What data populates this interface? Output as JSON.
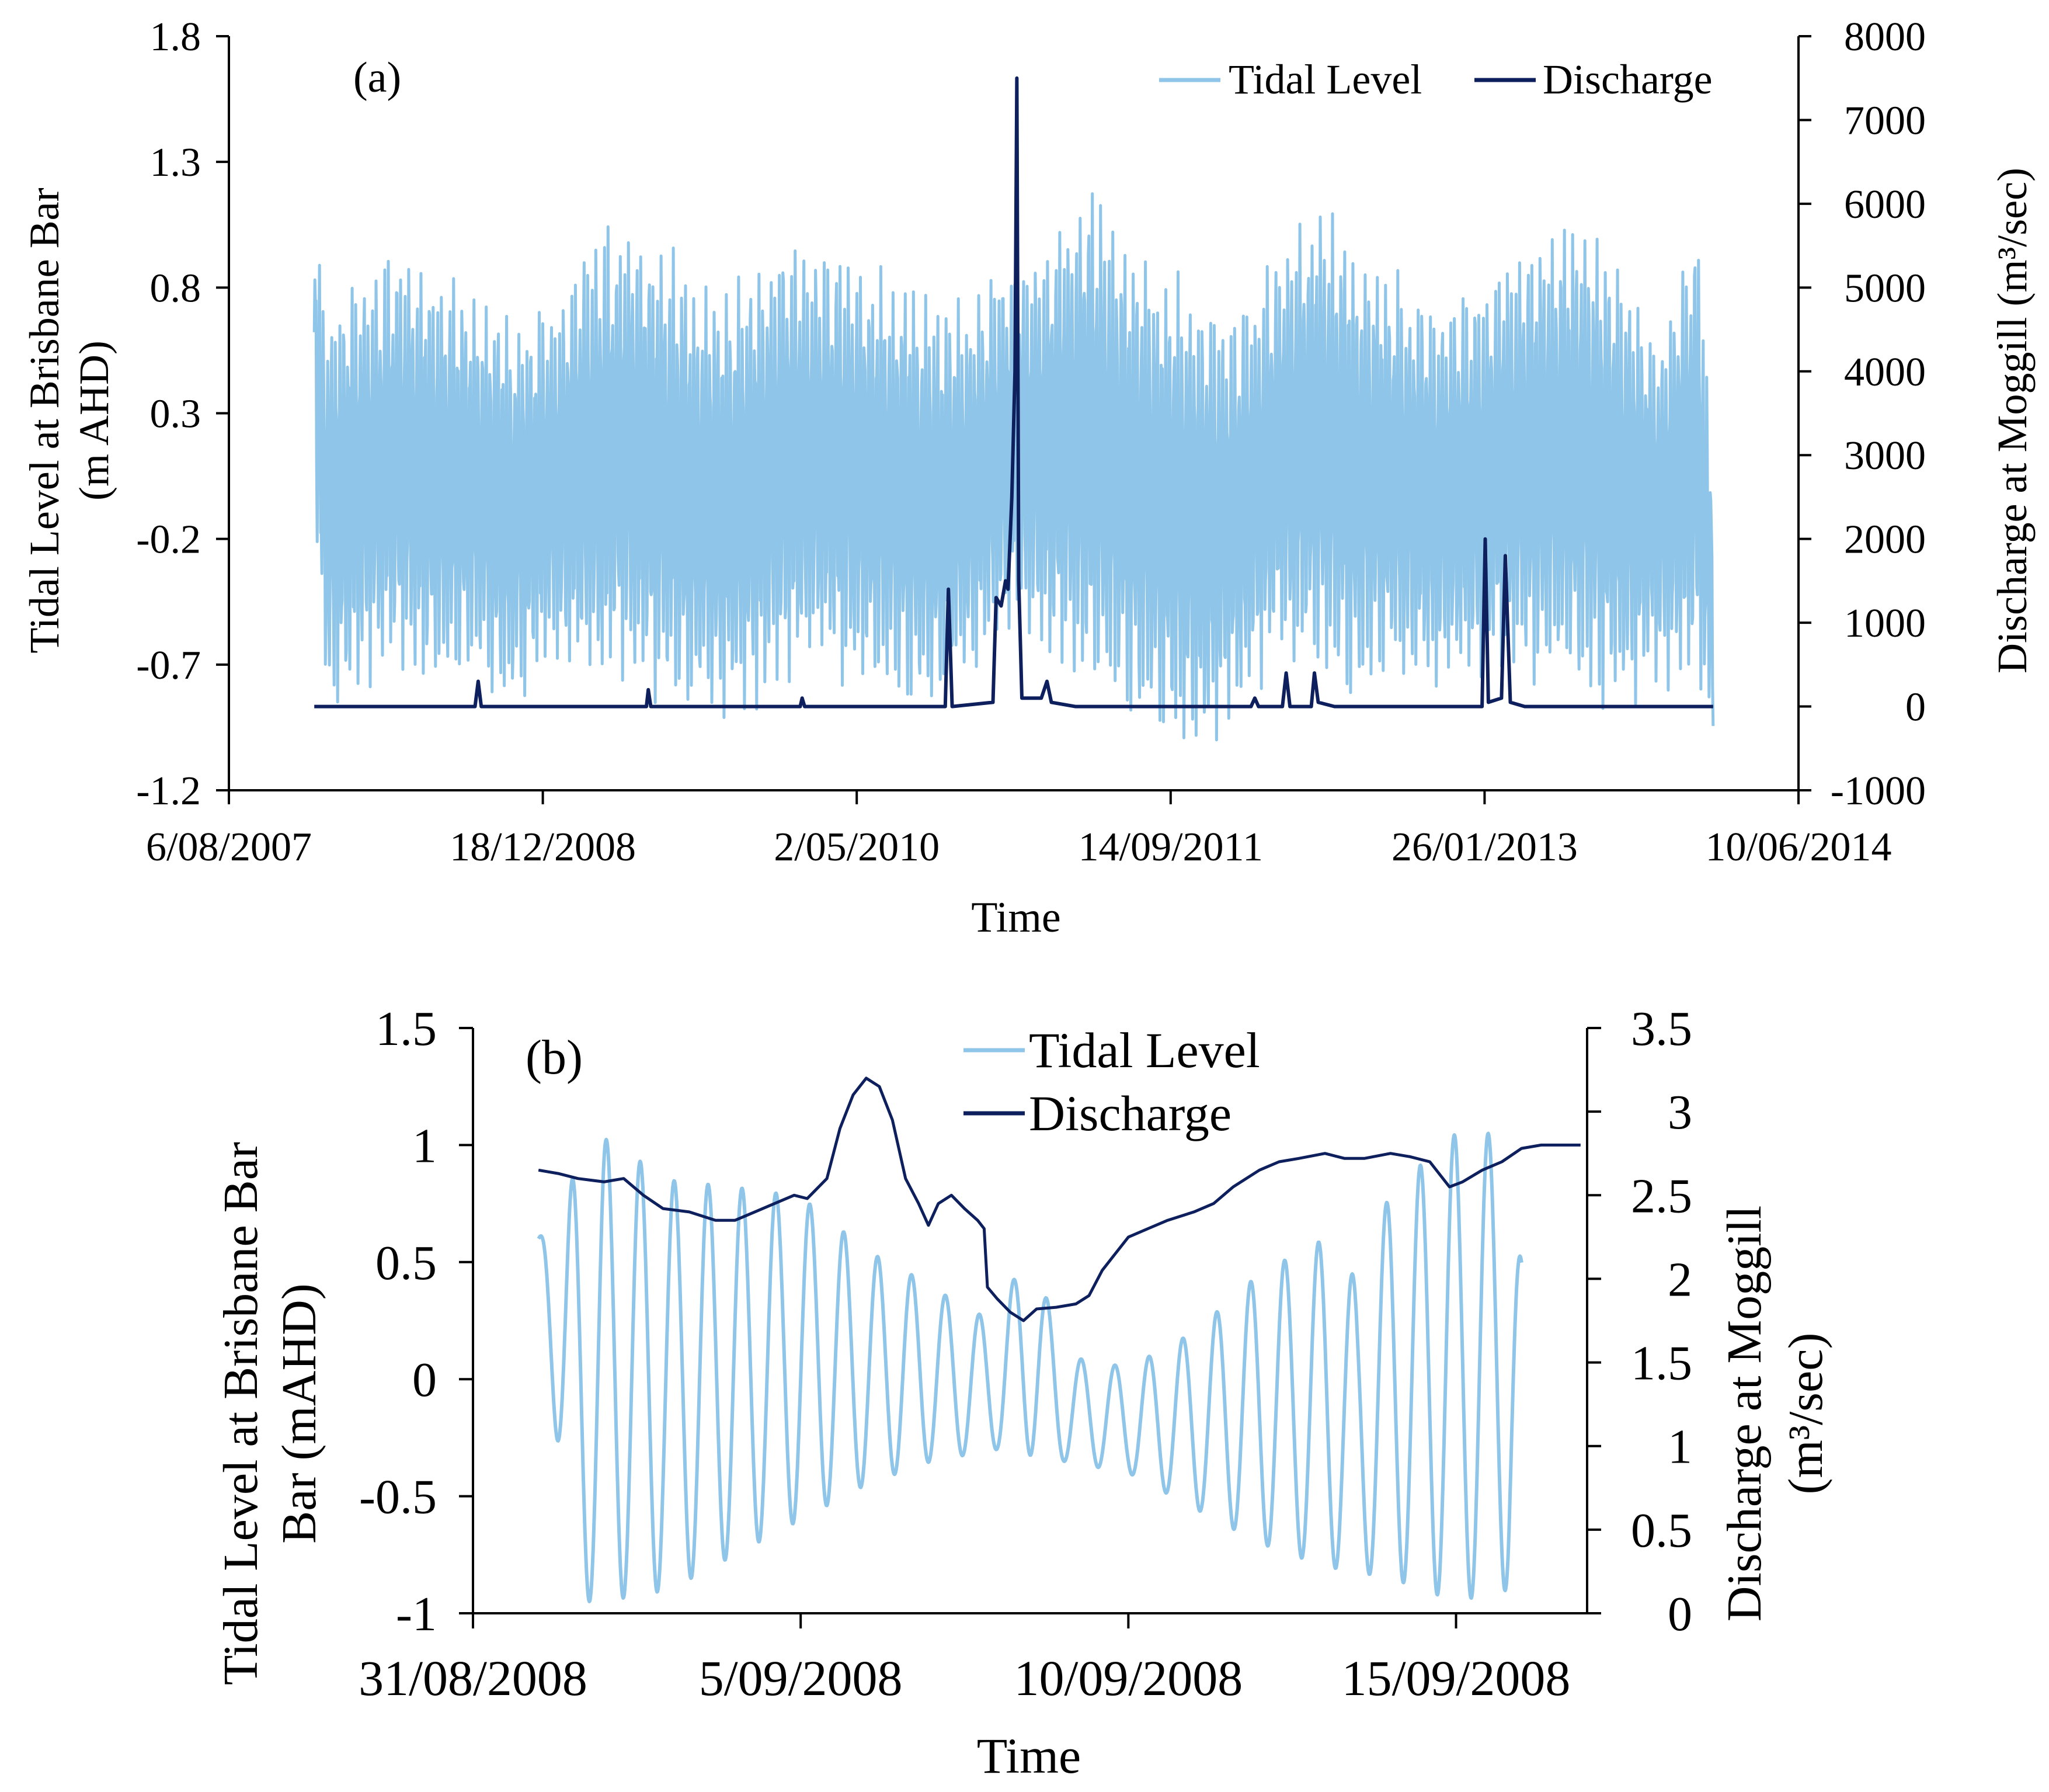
{
  "colors": {
    "tidal": "#8ec5e8",
    "discharge": "#0d1f5c",
    "axis": "#000000",
    "background": "#ffffff"
  },
  "chart_data": [
    {
      "id": "a",
      "type": "line",
      "panel_label": "(a)",
      "xlabel": "Time",
      "ylabel_left_line1": "Tidal Level at Brisbane Bar",
      "ylabel_left_line2": "(m AHD)",
      "ylabel_right": "Discharge at Moggill (m³/sec)",
      "x_ticks": [
        "6/08/2007",
        "18/12/2008",
        "2/05/2010",
        "14/09/2011",
        "26/01/2013",
        "10/06/2014"
      ],
      "xlim": [
        "2007-08-06",
        "2014-06-10"
      ],
      "ylim_left": [
        -1.2,
        1.8
      ],
      "yticks_left": [
        "1.8",
        "1.3",
        "0.8",
        "0.3",
        "-0.2",
        "-0.7",
        "-1.2"
      ],
      "ylim_right": [
        -1000,
        8000
      ],
      "yticks_right": [
        "8000",
        "7000",
        "6000",
        "5000",
        "4000",
        "3000",
        "2000",
        "1000",
        "0",
        "-1000"
      ],
      "legend_position": "top-right",
      "series": [
        {
          "name": "Tidal Level",
          "axis": "left",
          "envelope_high": [
            [
              "2007-12-20",
              1.15
            ],
            [
              "2008-01-10",
              0.8
            ],
            [
              "2008-03-01",
              0.92
            ],
            [
              "2008-05-01",
              1.0
            ],
            [
              "2008-07-01",
              0.95
            ],
            [
              "2008-09-01",
              0.85
            ],
            [
              "2008-11-01",
              0.75
            ],
            [
              "2009-01-01",
              0.78
            ],
            [
              "2009-03-01",
              1.05
            ],
            [
              "2009-05-01",
              1.15
            ],
            [
              "2009-07-01",
              1.05
            ],
            [
              "2009-09-01",
              0.85
            ],
            [
              "2009-11-01",
              0.9
            ],
            [
              "2010-01-01",
              1.05
            ],
            [
              "2010-03-01",
              1.0
            ],
            [
              "2010-05-01",
              1.0
            ],
            [
              "2010-07-01",
              0.92
            ],
            [
              "2010-09-01",
              0.8
            ],
            [
              "2010-11-01",
              0.8
            ],
            [
              "2011-01-01",
              0.95
            ],
            [
              "2011-03-01",
              1.05
            ],
            [
              "2011-05-01",
              1.32
            ],
            [
              "2011-07-01",
              1.05
            ],
            [
              "2011-09-01",
              0.95
            ],
            [
              "2011-11-01",
              0.85
            ],
            [
              "2012-01-01",
              0.75
            ],
            [
              "2012-03-01",
              1.0
            ],
            [
              "2012-05-01",
              1.2
            ],
            [
              "2012-07-01",
              1.05
            ],
            [
              "2012-09-01",
              0.9
            ],
            [
              "2012-11-01",
              0.8
            ],
            [
              "2013-01-01",
              0.85
            ],
            [
              "2013-03-01",
              1.0
            ],
            [
              "2013-05-01",
              1.1
            ],
            [
              "2013-07-01",
              1.17
            ],
            [
              "2013-09-01",
              0.95
            ],
            [
              "2013-11-01",
              0.65
            ],
            [
              "2014-01-01",
              1.15
            ],
            [
              "2014-01-25",
              0.1
            ]
          ],
          "envelope_low": [
            [
              "2007-12-20",
              -0.2
            ],
            [
              "2008-01-10",
              -1.0
            ],
            [
              "2008-03-01",
              -0.85
            ],
            [
              "2008-05-01",
              -0.75
            ],
            [
              "2008-07-01",
              -0.9
            ],
            [
              "2008-09-01",
              -0.8
            ],
            [
              "2008-11-01",
              -0.95
            ],
            [
              "2009-01-01",
              -0.75
            ],
            [
              "2009-03-01",
              -0.85
            ],
            [
              "2009-05-01",
              -0.85
            ],
            [
              "2009-07-01",
              -0.95
            ],
            [
              "2009-09-01",
              -0.95
            ],
            [
              "2009-11-01",
              -1.0
            ],
            [
              "2010-01-01",
              -0.85
            ],
            [
              "2010-03-01",
              -0.75
            ],
            [
              "2010-05-01",
              -0.85
            ],
            [
              "2010-07-01",
              -0.9
            ],
            [
              "2010-09-01",
              -0.95
            ],
            [
              "2010-11-01",
              -0.8
            ],
            [
              "2011-01-01",
              -0.6
            ],
            [
              "2011-03-01",
              -0.75
            ],
            [
              "2011-05-01",
              -0.9
            ],
            [
              "2011-07-01",
              -0.95
            ],
            [
              "2011-09-01",
              -1.05
            ],
            [
              "2011-11-01",
              -1.13
            ],
            [
              "2012-01-01",
              -0.95
            ],
            [
              "2012-03-01",
              -0.75
            ],
            [
              "2012-05-01",
              -0.8
            ],
            [
              "2012-07-01",
              -0.9
            ],
            [
              "2012-09-01",
              -0.8
            ],
            [
              "2012-11-01",
              -0.85
            ],
            [
              "2013-01-01",
              -0.85
            ],
            [
              "2013-03-01",
              -0.8
            ],
            [
              "2013-05-01",
              -0.85
            ],
            [
              "2013-07-01",
              -0.9
            ],
            [
              "2013-09-01",
              -0.95
            ],
            [
              "2013-11-01",
              -0.8
            ],
            [
              "2014-01-01",
              -0.85
            ],
            [
              "2014-01-25",
              -1.05
            ]
          ]
        },
        {
          "name": "Discharge",
          "axis": "right",
          "points": [
            [
              "2007-12-20",
              0
            ],
            [
              "2008-09-01",
              0
            ],
            [
              "2008-09-06",
              300
            ],
            [
              "2008-09-11",
              0
            ],
            [
              "2009-06-01",
              0
            ],
            [
              "2009-06-04",
              200
            ],
            [
              "2009-06-08",
              0
            ],
            [
              "2010-02-01",
              0
            ],
            [
              "2010-02-04",
              100
            ],
            [
              "2010-02-08",
              0
            ],
            [
              "2010-09-20",
              0
            ],
            [
              "2010-09-25",
              1400
            ],
            [
              "2010-10-01",
              0
            ],
            [
              "2010-12-05",
              50
            ],
            [
              "2010-12-10",
              1300
            ],
            [
              "2010-12-18",
              1200
            ],
            [
              "2010-12-25",
              1500
            ],
            [
              "2010-12-29",
              1400
            ],
            [
              "2011-01-04",
              2500
            ],
            [
              "2011-01-09",
              4000
            ],
            [
              "2011-01-12",
              7500
            ],
            [
              "2011-01-15",
              1500
            ],
            [
              "2011-01-20",
              100
            ],
            [
              "2011-02-20",
              100
            ],
            [
              "2011-03-01",
              300
            ],
            [
              "2011-03-08",
              50
            ],
            [
              "2011-04-15",
              0
            ],
            [
              "2012-01-20",
              0
            ],
            [
              "2012-01-26",
              100
            ],
            [
              "2012-02-01",
              0
            ],
            [
              "2012-03-10",
              0
            ],
            [
              "2012-03-16",
              400
            ],
            [
              "2012-03-22",
              0
            ],
            [
              "2012-04-25",
              0
            ],
            [
              "2012-04-30",
              400
            ],
            [
              "2012-05-06",
              50
            ],
            [
              "2012-06-01",
              0
            ],
            [
              "2013-01-22",
              0
            ],
            [
              "2013-01-27",
              2000
            ],
            [
              "2013-02-01",
              50
            ],
            [
              "2013-02-22",
              100
            ],
            [
              "2013-02-28",
              1800
            ],
            [
              "2013-03-08",
              50
            ],
            [
              "2013-03-31",
              0
            ],
            [
              "2014-01-25",
              0
            ]
          ]
        }
      ]
    },
    {
      "id": "b",
      "type": "line",
      "panel_label": "(b)",
      "xlabel": "Time",
      "ylabel_left_line1": "Tidal Level at Brisbane Bar",
      "ylabel_left_line2": "Bar (mAHD)",
      "ylabel_right_line1": "Discharge at Moggill",
      "ylabel_right_line2": "(m³/sec)",
      "x_ticks": [
        "31/08/2008",
        "5/09/2008",
        "10/09/2008",
        "15/09/2008"
      ],
      "xlim": [
        "2008-08-31",
        "2008-09-17"
      ],
      "ylim_left": [
        -1,
        1.5
      ],
      "yticks_left": [
        "1.5",
        "1",
        "0.5",
        "0",
        "-0.5",
        "-1"
      ],
      "ylim_right": [
        0,
        3.5
      ],
      "yticks_right": [
        "3.5",
        "3",
        "2.5",
        "2",
        "1.5",
        "1",
        "0.5",
        "0"
      ],
      "legend_position": "top-center",
      "series": [
        {
          "name": "Tidal Level",
          "axis": "left",
          "x_start_day": 1.0,
          "x_end_day": 16.0,
          "period_days": 0.5175,
          "envelope_high": [
            [
              1.0,
              0.6
            ],
            [
              1.5,
              0.85
            ],
            [
              2.0,
              1.03
            ],
            [
              3.0,
              0.85
            ],
            [
              4.0,
              0.82
            ],
            [
              5.0,
              0.78
            ],
            [
              6.0,
              0.55
            ],
            [
              7.0,
              0.4
            ],
            [
              7.5,
              0.3
            ],
            [
              8.0,
              0.25
            ],
            [
              8.5,
              0.6
            ],
            [
              9.0,
              0.1
            ],
            [
              10.0,
              0.05
            ],
            [
              11.0,
              0.2
            ],
            [
              12.0,
              0.45
            ],
            [
              13.0,
              0.6
            ],
            [
              13.5,
              0.42
            ],
            [
              14.0,
              0.8
            ],
            [
              15.0,
              1.05
            ],
            [
              15.8,
              1.05
            ],
            [
              16.0,
              0.5
            ]
          ],
          "envelope_low": [
            [
              1.0,
              0.6
            ],
            [
              1.5,
              -0.95
            ],
            [
              2.0,
              -0.95
            ],
            [
              3.0,
              -0.9
            ],
            [
              4.0,
              -0.75
            ],
            [
              5.0,
              -0.6
            ],
            [
              6.0,
              -0.45
            ],
            [
              7.0,
              -0.35
            ],
            [
              8.0,
              -0.3
            ],
            [
              9.0,
              -0.35
            ],
            [
              10.0,
              -0.4
            ],
            [
              11.0,
              -0.55
            ],
            [
              12.0,
              -0.7
            ],
            [
              13.0,
              -0.8
            ],
            [
              14.0,
              -0.85
            ],
            [
              15.0,
              -0.95
            ],
            [
              15.8,
              -0.9
            ],
            [
              16.0,
              -0.5
            ]
          ]
        },
        {
          "name": "Discharge",
          "axis": "right",
          "points": [
            [
              1.0,
              2.65
            ],
            [
              1.3,
              2.63
            ],
            [
              1.6,
              2.6
            ],
            [
              2.0,
              2.58
            ],
            [
              2.3,
              2.6
            ],
            [
              2.6,
              2.5
            ],
            [
              2.9,
              2.42
            ],
            [
              3.3,
              2.4
            ],
            [
              3.7,
              2.35
            ],
            [
              4.0,
              2.35
            ],
            [
              4.3,
              2.4
            ],
            [
              4.6,
              2.45
            ],
            [
              4.9,
              2.5
            ],
            [
              5.1,
              2.48
            ],
            [
              5.4,
              2.6
            ],
            [
              5.6,
              2.9
            ],
            [
              5.8,
              3.1
            ],
            [
              6.0,
              3.2
            ],
            [
              6.2,
              3.15
            ],
            [
              6.4,
              2.95
            ],
            [
              6.6,
              2.6
            ],
            [
              6.8,
              2.45
            ],
            [
              6.95,
              2.32
            ],
            [
              7.1,
              2.45
            ],
            [
              7.3,
              2.5
            ],
            [
              7.5,
              2.42
            ],
            [
              7.7,
              2.35
            ],
            [
              7.8,
              2.3
            ],
            [
              7.85,
              1.95
            ],
            [
              8.0,
              1.88
            ],
            [
              8.2,
              1.8
            ],
            [
              8.4,
              1.75
            ],
            [
              8.6,
              1.82
            ],
            [
              8.9,
              1.83
            ],
            [
              9.2,
              1.85
            ],
            [
              9.4,
              1.9
            ],
            [
              9.6,
              2.05
            ],
            [
              9.8,
              2.15
            ],
            [
              10.0,
              2.25
            ],
            [
              10.3,
              2.3
            ],
            [
              10.6,
              2.35
            ],
            [
              11.0,
              2.4
            ],
            [
              11.3,
              2.45
            ],
            [
              11.6,
              2.55
            ],
            [
              12.0,
              2.65
            ],
            [
              12.3,
              2.7
            ],
            [
              12.6,
              2.72
            ],
            [
              13.0,
              2.75
            ],
            [
              13.3,
              2.72
            ],
            [
              13.6,
              2.72
            ],
            [
              14.0,
              2.75
            ],
            [
              14.3,
              2.73
            ],
            [
              14.6,
              2.7
            ],
            [
              14.9,
              2.55
            ],
            [
              15.1,
              2.58
            ],
            [
              15.4,
              2.65
            ],
            [
              15.7,
              2.7
            ],
            [
              16.0,
              2.78
            ],
            [
              16.3,
              2.8
            ],
            [
              16.6,
              2.8
            ],
            [
              16.9,
              2.8
            ]
          ]
        }
      ]
    }
  ]
}
